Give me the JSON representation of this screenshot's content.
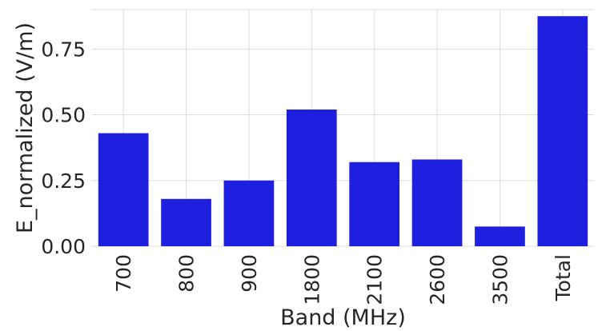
{
  "chart_data": {
    "type": "bar",
    "categories": [
      "700",
      "800",
      "900",
      "1800",
      "2100",
      "2600",
      "3500",
      "Total"
    ],
    "values": [
      0.43,
      0.18,
      0.25,
      0.52,
      0.32,
      0.33,
      0.075,
      0.875
    ],
    "xlabel": "Band (MHz)",
    "ylabel": "E_normalized (V/m)",
    "ylim": [
      0,
      0.9
    ],
    "yticks": [
      0.0,
      0.25,
      0.5,
      0.75
    ],
    "ytick_labels": [
      "0.00",
      "0.25",
      "0.50",
      "0.75"
    ],
    "bar_color": "#1f1fe0",
    "grid": true,
    "legend": "none"
  }
}
